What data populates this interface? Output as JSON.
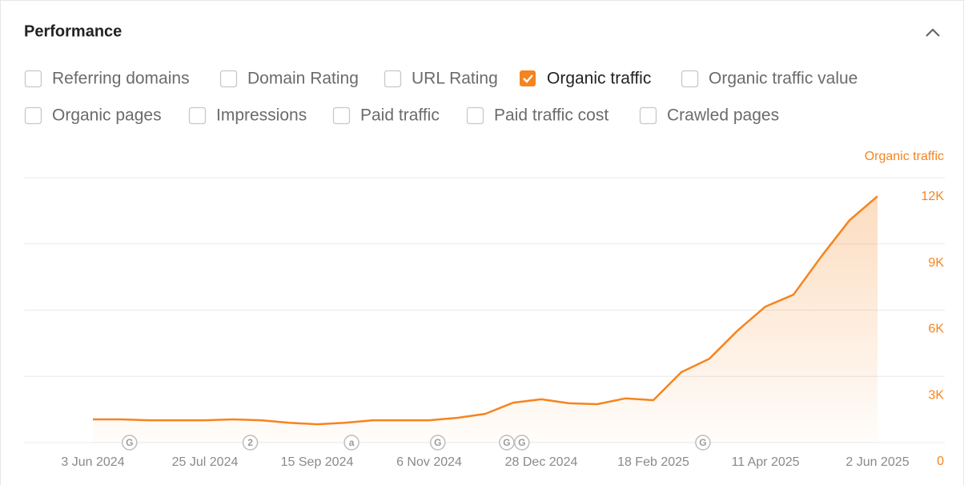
{
  "header": {
    "title": "Performance"
  },
  "checkboxes": [
    [
      {
        "label": "Referring domains",
        "checked": false
      },
      {
        "label": "Domain Rating",
        "checked": false
      },
      {
        "label": "URL Rating",
        "checked": false
      },
      {
        "label": "Organic traffic",
        "checked": true
      },
      {
        "label": "Organic traffic value",
        "checked": false
      }
    ],
    [
      {
        "label": "Organic pages",
        "checked": false
      },
      {
        "label": "Impressions",
        "checked": false
      },
      {
        "label": "Paid traffic",
        "checked": false
      },
      {
        "label": "Paid traffic cost",
        "checked": false
      },
      {
        "label": "Crawled pages",
        "checked": false
      }
    ]
  ],
  "chart_data": {
    "type": "line",
    "y_label": "Organic traffic",
    "x": [
      "2024-06-03",
      "2024-06-16",
      "2024-06-29",
      "2024-07-12",
      "2024-07-25",
      "2024-08-07",
      "2024-08-20",
      "2024-09-02",
      "2024-09-15",
      "2024-09-28",
      "2024-10-11",
      "2024-10-24",
      "2024-11-06",
      "2024-11-19",
      "2024-12-02",
      "2024-12-15",
      "2024-12-28",
      "2025-01-10",
      "2025-01-23",
      "2025-02-05",
      "2025-02-18",
      "2025-03-03",
      "2025-03-16",
      "2025-03-29",
      "2025-04-11",
      "2025-04-24",
      "2025-05-07",
      "2025-05-20",
      "2025-06-02"
    ],
    "series": [
      {
        "name": "Organic traffic",
        "color": "#f5841f",
        "values": [
          1050,
          1050,
          1010,
          1010,
          1010,
          1050,
          1010,
          900,
          830,
          900,
          1010,
          1010,
          1010,
          1120,
          1300,
          1810,
          1960,
          1780,
          1740,
          2000,
          1920,
          3190,
          3800,
          5070,
          6160,
          6700,
          8440,
          10070,
          11160
        ]
      }
    ],
    "xlim": [
      "2024-06-03",
      "2025-06-02"
    ],
    "xticks": [
      {
        "value": "2024-06-03",
        "label": "3 Jun 2024"
      },
      {
        "value": "2024-07-25",
        "label": "25 Jul 2024"
      },
      {
        "value": "2024-09-15",
        "label": "15 Sep 2024"
      },
      {
        "value": "2024-11-06",
        "label": "6 Nov 2024"
      },
      {
        "value": "2024-12-28",
        "label": "28 Dec 2024"
      },
      {
        "value": "2025-02-18",
        "label": "18 Feb 2025"
      },
      {
        "value": "2025-04-11",
        "label": "11 Apr 2025"
      },
      {
        "value": "2025-06-02",
        "label": "2 Jun 2025"
      }
    ],
    "ylim": [
      0,
      12000
    ],
    "yticks": [
      0,
      {
        "value": 3000,
        "label": "3K"
      },
      {
        "value": 6000,
        "label": "6K"
      },
      {
        "value": 9000,
        "label": "9K"
      },
      {
        "value": 12000,
        "label": "12K"
      }
    ],
    "grid": true,
    "annotations": [
      {
        "x": "2024-06-20",
        "label": "G"
      },
      {
        "x": "2024-08-15",
        "label": "2"
      },
      {
        "x": "2024-10-01",
        "label": "a"
      },
      {
        "x": "2024-11-10",
        "label": "G"
      },
      {
        "x": "2024-12-12",
        "label": "G"
      },
      {
        "x": "2024-12-19",
        "label": "G"
      },
      {
        "x": "2025-03-13",
        "label": "G"
      }
    ]
  }
}
